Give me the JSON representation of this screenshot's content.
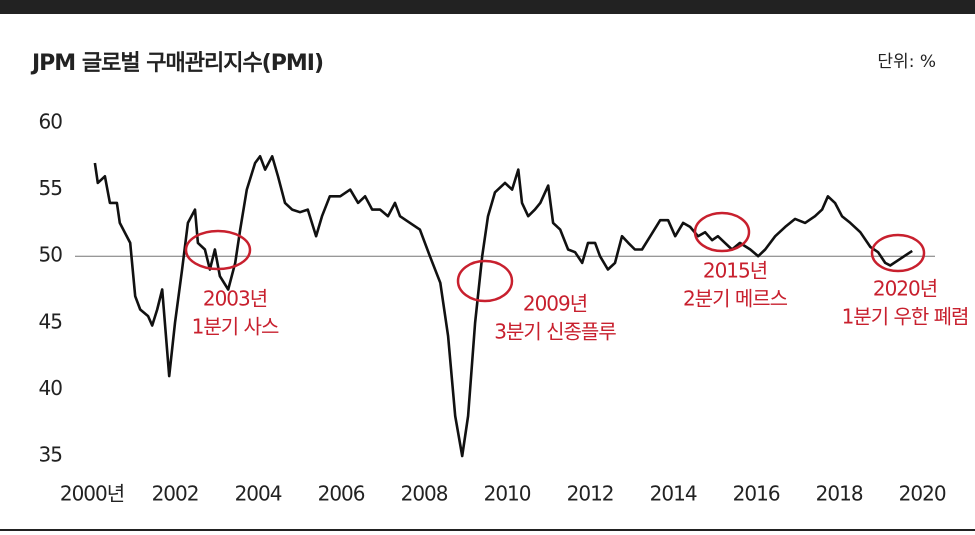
{
  "chart_data": {
    "type": "line",
    "title": "JPM 글로벌 구매관리지수(PMI)",
    "unit": "단위: %",
    "x": [
      2000.07,
      2000.14,
      2000.31,
      2000.43,
      2000.6,
      2000.67,
      2000.92,
      2001.04,
      2001.16,
      2001.35,
      2001.45,
      2001.57,
      2001.69,
      2001.86,
      2002.0,
      2002.17,
      2002.31,
      2002.48,
      2002.55,
      2002.72,
      2002.84,
      2002.96,
      2003.08,
      2003.28,
      2003.45,
      2003.57,
      2003.73,
      2003.93,
      2004.05,
      2004.17,
      2004.34,
      2004.48,
      2004.65,
      2004.82,
      2005.01,
      2005.2,
      2005.4,
      2005.54,
      2005.73,
      2005.98,
      2006.22,
      2006.41,
      2006.58,
      2006.75,
      2006.94,
      2007.13,
      2007.3,
      2007.42,
      2007.66,
      2007.9,
      2008.14,
      2008.39,
      2008.58,
      2008.75,
      2008.92,
      2009.06,
      2009.23,
      2009.4,
      2009.54,
      2009.71,
      2009.95,
      2010.12,
      2010.27,
      2010.36,
      2010.51,
      2010.67,
      2010.8,
      2010.99,
      2011.11,
      2011.28,
      2011.47,
      2011.64,
      2011.81,
      2011.95,
      2012.12,
      2012.24,
      2012.43,
      2012.6,
      2012.77,
      2012.92,
      2013.08,
      2013.25,
      2013.45,
      2013.69,
      2013.88,
      2014.05,
      2014.24,
      2014.41,
      2014.6,
      2014.77,
      2014.94,
      2015.08,
      2015.25,
      2015.42,
      2015.61,
      2015.86,
      2016.05,
      2016.22,
      2016.46,
      2016.7,
      2016.94,
      2017.18,
      2017.42,
      2017.59,
      2017.73,
      2017.9,
      2018.07,
      2018.27,
      2018.51,
      2018.75,
      2018.94,
      2019.11,
      2019.23,
      2019.47,
      2019.76
    ],
    "series": [
      {
        "color": "#111111",
        "values": [
          57,
          55.5,
          56,
          54,
          54,
          52.5,
          51,
          47,
          46,
          45.5,
          44.8,
          46,
          47.5,
          41,
          45,
          49,
          52.5,
          53.5,
          51,
          50.5,
          49,
          50.5,
          48.5,
          47.5,
          49.5,
          52,
          55,
          57,
          57.5,
          56.5,
          57.5,
          56,
          54,
          53.5,
          53.3,
          53.5,
          51.5,
          53,
          54.5,
          54.5,
          55,
          54,
          54.5,
          53.5,
          53.5,
          53,
          54,
          53,
          52.5,
          52,
          50,
          48,
          44,
          38,
          35,
          38,
          45,
          50,
          53,
          54.8,
          55.5,
          55,
          56.5,
          54,
          53,
          53.5,
          54,
          55.3,
          52.5,
          52,
          50.5,
          50.3,
          49.5,
          51,
          51,
          50,
          49,
          49.5,
          51.5,
          51,
          50.5,
          50.5,
          51.5,
          52.7,
          52.7,
          51.5,
          52.5,
          52.2,
          51.5,
          51.8,
          51.2,
          51.5,
          51,
          50.5,
          51,
          50.5,
          50,
          50.5,
          51.5,
          52.2,
          52.8,
          52.5,
          53,
          53.5,
          54.5,
          54,
          53,
          52.5,
          51.8,
          50.7,
          50.3,
          49.5,
          49.3,
          49.8,
          50.4
        ]
      }
    ],
    "xlim": [
      1999.59,
      2020.31
    ],
    "xticks": [
      {
        "value": 2000,
        "label": "2000년"
      },
      2002,
      2004,
      2006,
      2008,
      2010,
      2012,
      2014,
      2016,
      2018,
      2020
    ],
    "ylim": [
      35,
      60
    ],
    "yticks": [
      35,
      40,
      45,
      50,
      55,
      60
    ],
    "reference_line": 50,
    "annotations": [
      {
        "lines": [
          "2003년",
          "1분기 사스"
        ]
      },
      {
        "lines": [
          "2009년",
          "3분기 신종플루"
        ]
      },
      {
        "lines": [
          "2015년",
          "2분기 메르스"
        ]
      },
      {
        "lines": [
          "2020년",
          "1분기 우한 폐렴"
        ]
      }
    ],
    "annotation_color": "#c8202e"
  }
}
